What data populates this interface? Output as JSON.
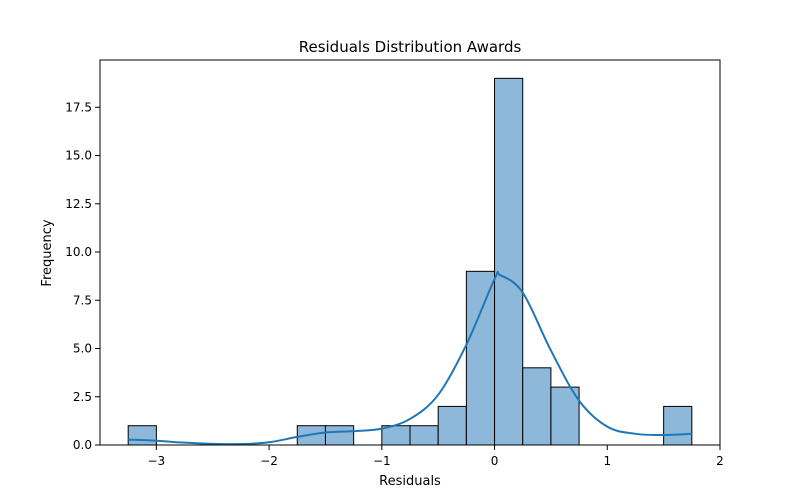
{
  "chart_data": {
    "type": "histogram",
    "title": "Residuals Distribution Awards",
    "xlabel": "Residuals",
    "ylabel": "Frequency",
    "xlim": [
      -3.5,
      2.0
    ],
    "ylim": [
      0,
      19.95
    ],
    "xticks": [
      -3,
      -2,
      -1,
      0,
      1,
      2
    ],
    "xtick_labels": [
      "−3",
      "−2",
      "−1",
      "0",
      "1",
      "2"
    ],
    "yticks": [
      0,
      2.5,
      5,
      7.5,
      10,
      12.5,
      15,
      17.5
    ],
    "ytick_labels": [
      "0.0",
      "2.5",
      "5.0",
      "7.5",
      "10.0",
      "12.5",
      "15.0",
      "17.5"
    ],
    "bins": [
      {
        "x0": -3.25,
        "x1": -3.0,
        "count": 1
      },
      {
        "x0": -1.75,
        "x1": -1.5,
        "count": 1
      },
      {
        "x0": -1.5,
        "x1": -1.25,
        "count": 1
      },
      {
        "x0": -1.0,
        "x1": -0.75,
        "count": 1
      },
      {
        "x0": -0.75,
        "x1": -0.5,
        "count": 1
      },
      {
        "x0": -0.5,
        "x1": -0.25,
        "count": 2
      },
      {
        "x0": -0.25,
        "x1": 0.0,
        "count": 9
      },
      {
        "x0": 0.0,
        "x1": 0.25,
        "count": 19
      },
      {
        "x0": 0.25,
        "x1": 0.5,
        "count": 4
      },
      {
        "x0": 0.5,
        "x1": 0.75,
        "count": 3
      },
      {
        "x0": 1.5,
        "x1": 1.75,
        "count": 2
      }
    ],
    "kde": [
      {
        "x": -3.25,
        "y": 0.28
      },
      {
        "x": -3.0,
        "y": 0.22
      },
      {
        "x": -2.75,
        "y": 0.12
      },
      {
        "x": -2.5,
        "y": 0.06
      },
      {
        "x": -2.25,
        "y": 0.05
      },
      {
        "x": -2.0,
        "y": 0.14
      },
      {
        "x": -1.75,
        "y": 0.42
      },
      {
        "x": -1.5,
        "y": 0.65
      },
      {
        "x": -1.25,
        "y": 0.72
      },
      {
        "x": -1.0,
        "y": 0.85
      },
      {
        "x": -0.75,
        "y": 1.35
      },
      {
        "x": -0.5,
        "y": 2.6
      },
      {
        "x": -0.25,
        "y": 5.2
      },
      {
        "x": 0.0,
        "y": 8.6
      },
      {
        "x": 0.05,
        "y": 8.8
      },
      {
        "x": 0.25,
        "y": 7.9
      },
      {
        "x": 0.5,
        "y": 4.9
      },
      {
        "x": 0.75,
        "y": 2.3
      },
      {
        "x": 1.0,
        "y": 0.95
      },
      {
        "x": 1.25,
        "y": 0.58
      },
      {
        "x": 1.5,
        "y": 0.52
      },
      {
        "x": 1.75,
        "y": 0.58
      }
    ],
    "colors": {
      "bar_fill": "#8db8da",
      "bar_edge": "#000000",
      "kde_line": "#1f77b4"
    },
    "grid": false
  }
}
